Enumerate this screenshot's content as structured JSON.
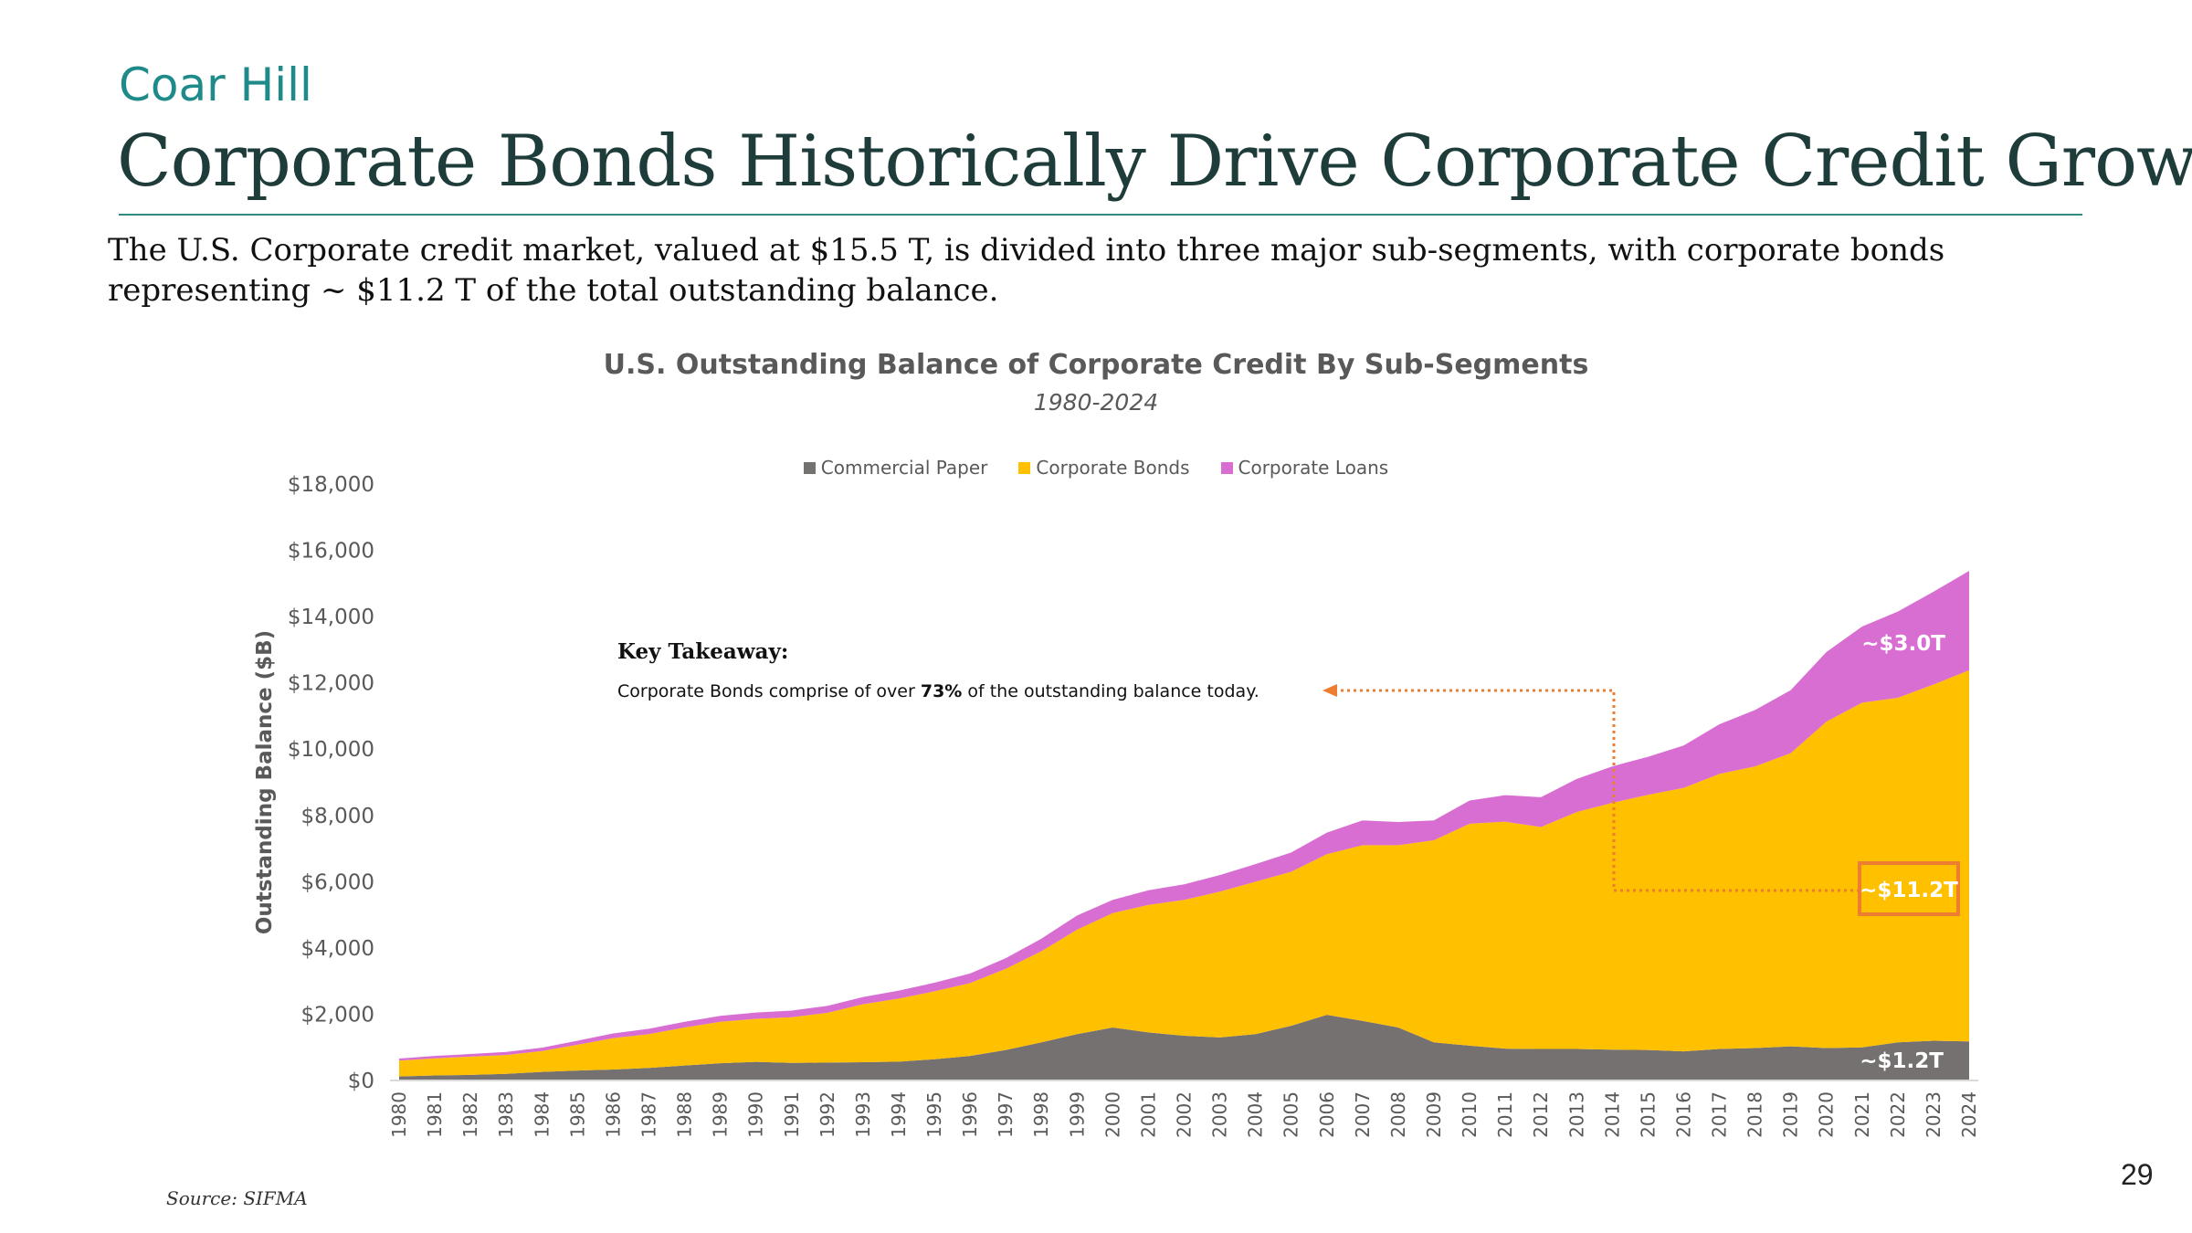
{
  "brand": "Coar Hill",
  "title": "Corporate Bonds Historically Drive Corporate Credit Growth",
  "subtitle": "The U.S. Corporate credit market, valued at $15.5 T, is divided into three major sub-segments, with corporate bonds representing ~ $11.2 T of the total outstanding balance.",
  "source": "Source: SIFMA",
  "page_number": "29",
  "colors": {
    "commercial_paper": "#767171",
    "corporate_bonds": "#FFC000",
    "corporate_loans": "#D86ED2",
    "accent_orange": "#ED7D31",
    "title_teal": "#1E3D3A",
    "brand_teal": "#1F8A8A"
  },
  "key_takeaway": {
    "heading": "Key Takeaway:",
    "text_before": "Corporate Bonds comprise of over ",
    "highlight": "73%",
    "text_after": " of the outstanding balance today."
  },
  "callouts": {
    "loans": "~$3.0T",
    "bonds": "~$11.2T",
    "paper": "~$1.2T"
  },
  "chart_data": {
    "type": "area",
    "stacked": true,
    "title": "U.S. Outstanding Balance of Corporate Credit By Sub-Segments",
    "subtitle": "1980-2024",
    "ylabel": "Outstanding Balance ($B)",
    "xlabel": "",
    "ylim": [
      0,
      18000
    ],
    "yticks": [
      0,
      2000,
      4000,
      6000,
      8000,
      10000,
      12000,
      14000,
      16000,
      18000
    ],
    "ytick_labels": [
      "$0",
      "$2,000",
      "$4,000",
      "$6,000",
      "$8,000",
      "$10,000",
      "$12,000",
      "$14,000",
      "$16,000",
      "$18,000"
    ],
    "legend_position": "top",
    "grid": false,
    "x": [
      "1980",
      "1981",
      "1982",
      "1983",
      "1984",
      "1985",
      "1986",
      "1987",
      "1988",
      "1989",
      "1990",
      "1991",
      "1992",
      "1993",
      "1994",
      "1995",
      "1996",
      "1997",
      "1998",
      "1999",
      "2000",
      "2001",
      "2002",
      "2003",
      "2004",
      "2005",
      "2006",
      "2007",
      "2008",
      "2009",
      "2010",
      "2011",
      "2012",
      "2013",
      "2014",
      "2015",
      "2016",
      "2017",
      "2018",
      "2019",
      "2020",
      "2021",
      "2022",
      "2023",
      "2024"
    ],
    "series": [
      {
        "name": "Commercial Paper",
        "values": [
          120,
          150,
          170,
          200,
          260,
          300,
          330,
          380,
          450,
          520,
          560,
          530,
          540,
          550,
          570,
          640,
          740,
          920,
          1150,
          1400,
          1600,
          1450,
          1350,
          1300,
          1400,
          1650,
          1980,
          1800,
          1600,
          1150,
          1050,
          960,
          950,
          950,
          930,
          920,
          880,
          950,
          980,
          1030,
          980,
          1000,
          1150,
          1200,
          1180
        ]
      },
      {
        "name": "Corporate Bonds",
        "values": [
          480,
          520,
          550,
          570,
          630,
          780,
          950,
          1020,
          1150,
          1250,
          1300,
          1380,
          1500,
          1750,
          1900,
          2050,
          2200,
          2450,
          2750,
          3150,
          3450,
          3850,
          4100,
          4400,
          4600,
          4650,
          4850,
          5300,
          5500,
          6100,
          6700,
          6850,
          6700,
          7150,
          7450,
          7700,
          7950,
          8300,
          8500,
          8850,
          9850,
          10400,
          10400,
          10750,
          11200
        ]
      },
      {
        "name": "Corporate Loans",
        "values": [
          60,
          70,
          80,
          90,
          100,
          120,
          140,
          160,
          170,
          180,
          190,
          200,
          210,
          220,
          240,
          260,
          290,
          320,
          380,
          430,
          400,
          440,
          470,
          500,
          530,
          580,
          650,
          750,
          700,
          600,
          700,
          800,
          900,
          1000,
          1100,
          1150,
          1280,
          1500,
          1700,
          1900,
          2100,
          2300,
          2600,
          2800,
          3000
        ]
      }
    ]
  }
}
